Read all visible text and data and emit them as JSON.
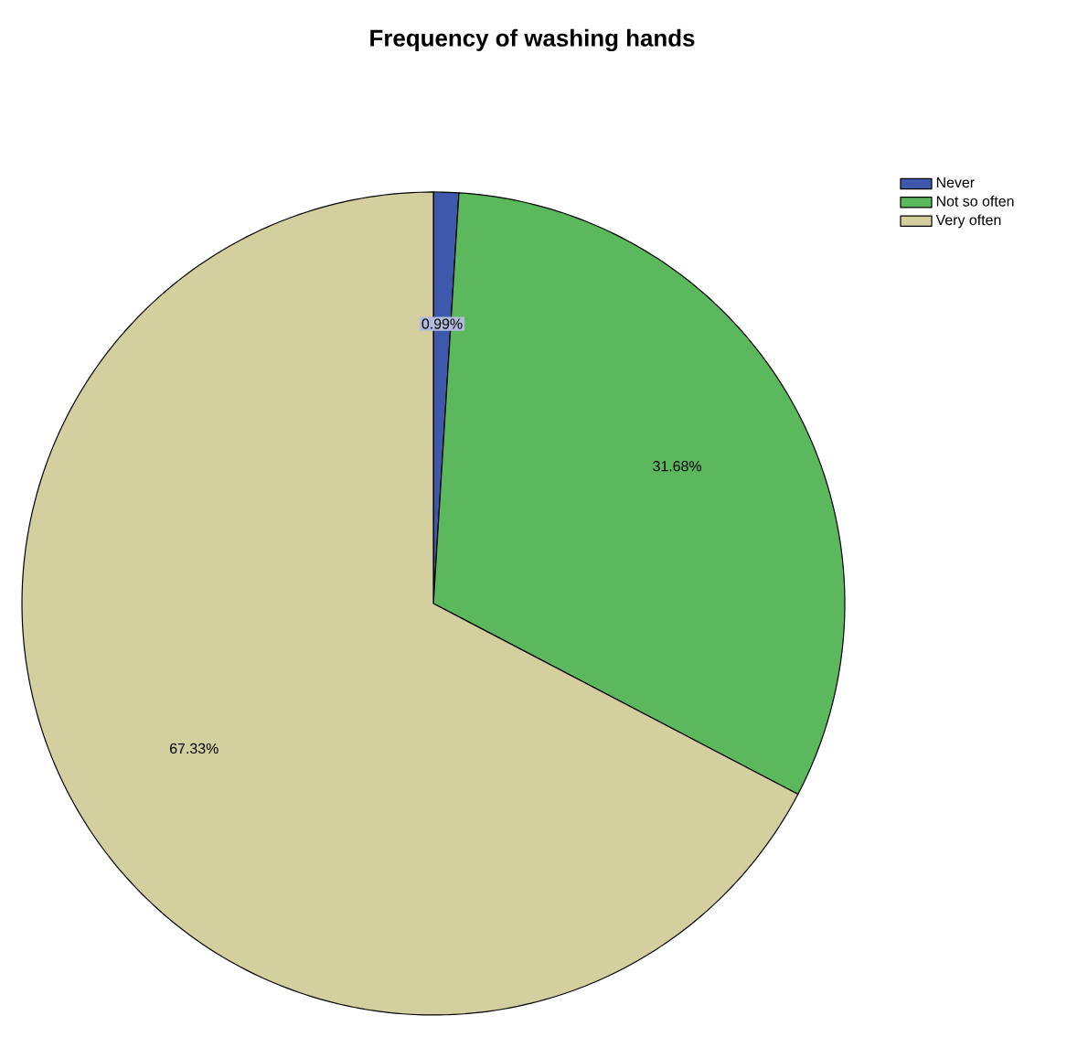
{
  "chart_data": {
    "type": "pie",
    "title": "Frequency of  washing hands",
    "categories": [
      "Never",
      "Not so often",
      "Very often"
    ],
    "values": [
      0.99,
      31.68,
      67.33
    ],
    "colors": [
      "#3e58ac",
      "#5cb85c",
      "#d4cf9e"
    ],
    "value_labels": [
      "0.99%",
      "31.68%",
      "67.33%"
    ],
    "legend": "top right"
  }
}
